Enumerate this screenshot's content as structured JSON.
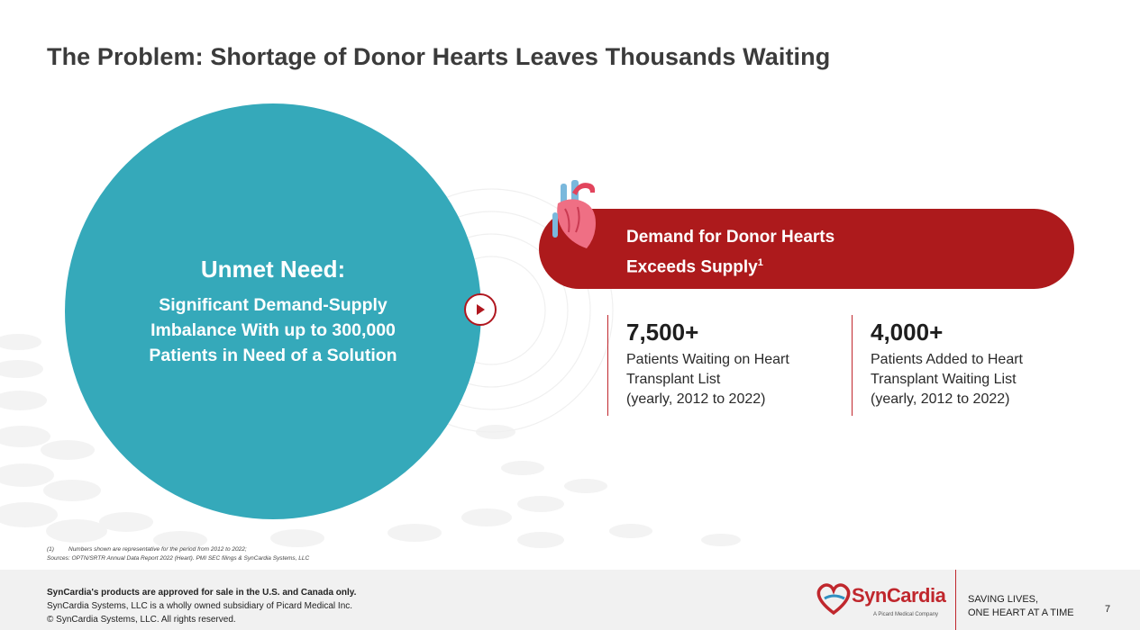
{
  "slide": {
    "title": "The Problem: Shortage of Donor Hearts Leaves Thousands Waiting"
  },
  "circle": {
    "heading": "Unmet Need:",
    "lines": [
      "Significant Demand-Supply",
      "Imbalance With up to 300,000",
      "Patients in Need of a Solution"
    ]
  },
  "demand_banner": {
    "line1": "Demand for Donor Hearts",
    "line2": "Exceeds Supply",
    "footnote_ref": "1"
  },
  "stats": [
    {
      "value": "7,500+",
      "lines": [
        "Patients Waiting on Heart",
        "Transplant List",
        "(yearly, 2012 to 2022)"
      ]
    },
    {
      "value": "4,000+",
      "lines": [
        "Patients Added to Heart",
        "Transplant Waiting  List",
        "(yearly, 2012 to 2022)"
      ]
    }
  ],
  "footnotes": {
    "marker": "(1)",
    "note": "Numbers shown are representative for the period from 2012 to 2022;",
    "sources": "Sources: OPTN/SRTR Annual Data Report 2022 (Heart). PMI SEC filings & SynCardia Systems, LLC"
  },
  "footer": {
    "approval": "SynCardia's products are approved for sale in the U.S. and Canada only.",
    "subsidiary": "SynCardia Systems, LLC is a wholly owned subsidiary of Picard Medical Inc.",
    "copyright": "© SynCardia Systems, LLC. All rights reserved.",
    "logo_name": "SynCardia",
    "logo_sub": "A Picard Medical Company",
    "tagline": [
      "SAVING LIVES,",
      "ONE HEART AT A TIME"
    ],
    "page_number": "7"
  },
  "colors": {
    "teal": "#35a9ba",
    "red": "#ad1a1c",
    "title": "#3b3b3b"
  },
  "icons": [
    "heart-illustration-icon",
    "play-arrow-icon",
    "syncardia-logo-icon"
  ]
}
